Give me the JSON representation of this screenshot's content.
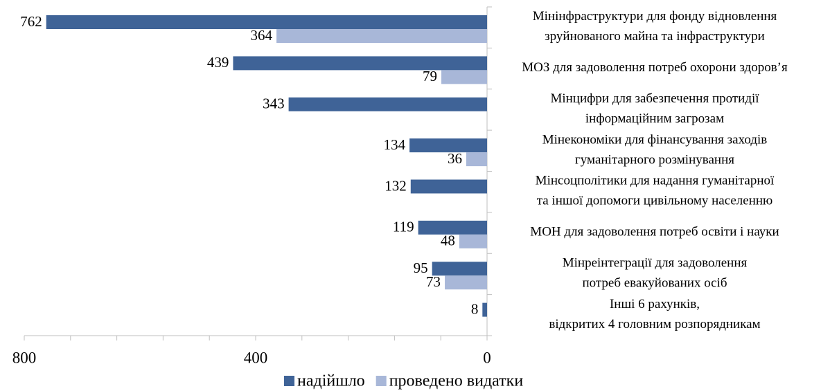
{
  "chart_data": {
    "type": "bar",
    "orientation": "horizontal",
    "categories": [
      "Мінінфраструктури для фонду відновлення\nзруйнованого майна та інфраструктури",
      "МОЗ для задоволення потреб охорони здоров’я",
      "Мінцифри для забезпечення протидії\nінформаційним загрозам",
      "Мінекономіки для фінансування заходів\nгуманітарного розмінування",
      "Мінсоцполітики для надання гуманітарної\nта іншої допомоги цивільному населенню",
      "МОН для задоволення потреб освіти і науки",
      "Мінреінтеграції для задоволення\nпотреб евакуйованих осіб",
      "Інші 6 рахунків,\nвідкритих 4 головним розпорядникам"
    ],
    "series": [
      {
        "name": "надійшло",
        "color": "#3f6397",
        "values": [
          762,
          439,
          343,
          134,
          132,
          119,
          95,
          8
        ]
      },
      {
        "name": "проведено видатки",
        "color": "#a8b7d8",
        "values": [
          364,
          79,
          null,
          36,
          null,
          48,
          73,
          null
        ]
      }
    ],
    "xlim": [
      800,
      0
    ],
    "xticks": [
      800,
      400,
      0
    ],
    "xminorticks": [
      720,
      640,
      560,
      480,
      320,
      240,
      160,
      80
    ],
    "legend": "bottom"
  }
}
